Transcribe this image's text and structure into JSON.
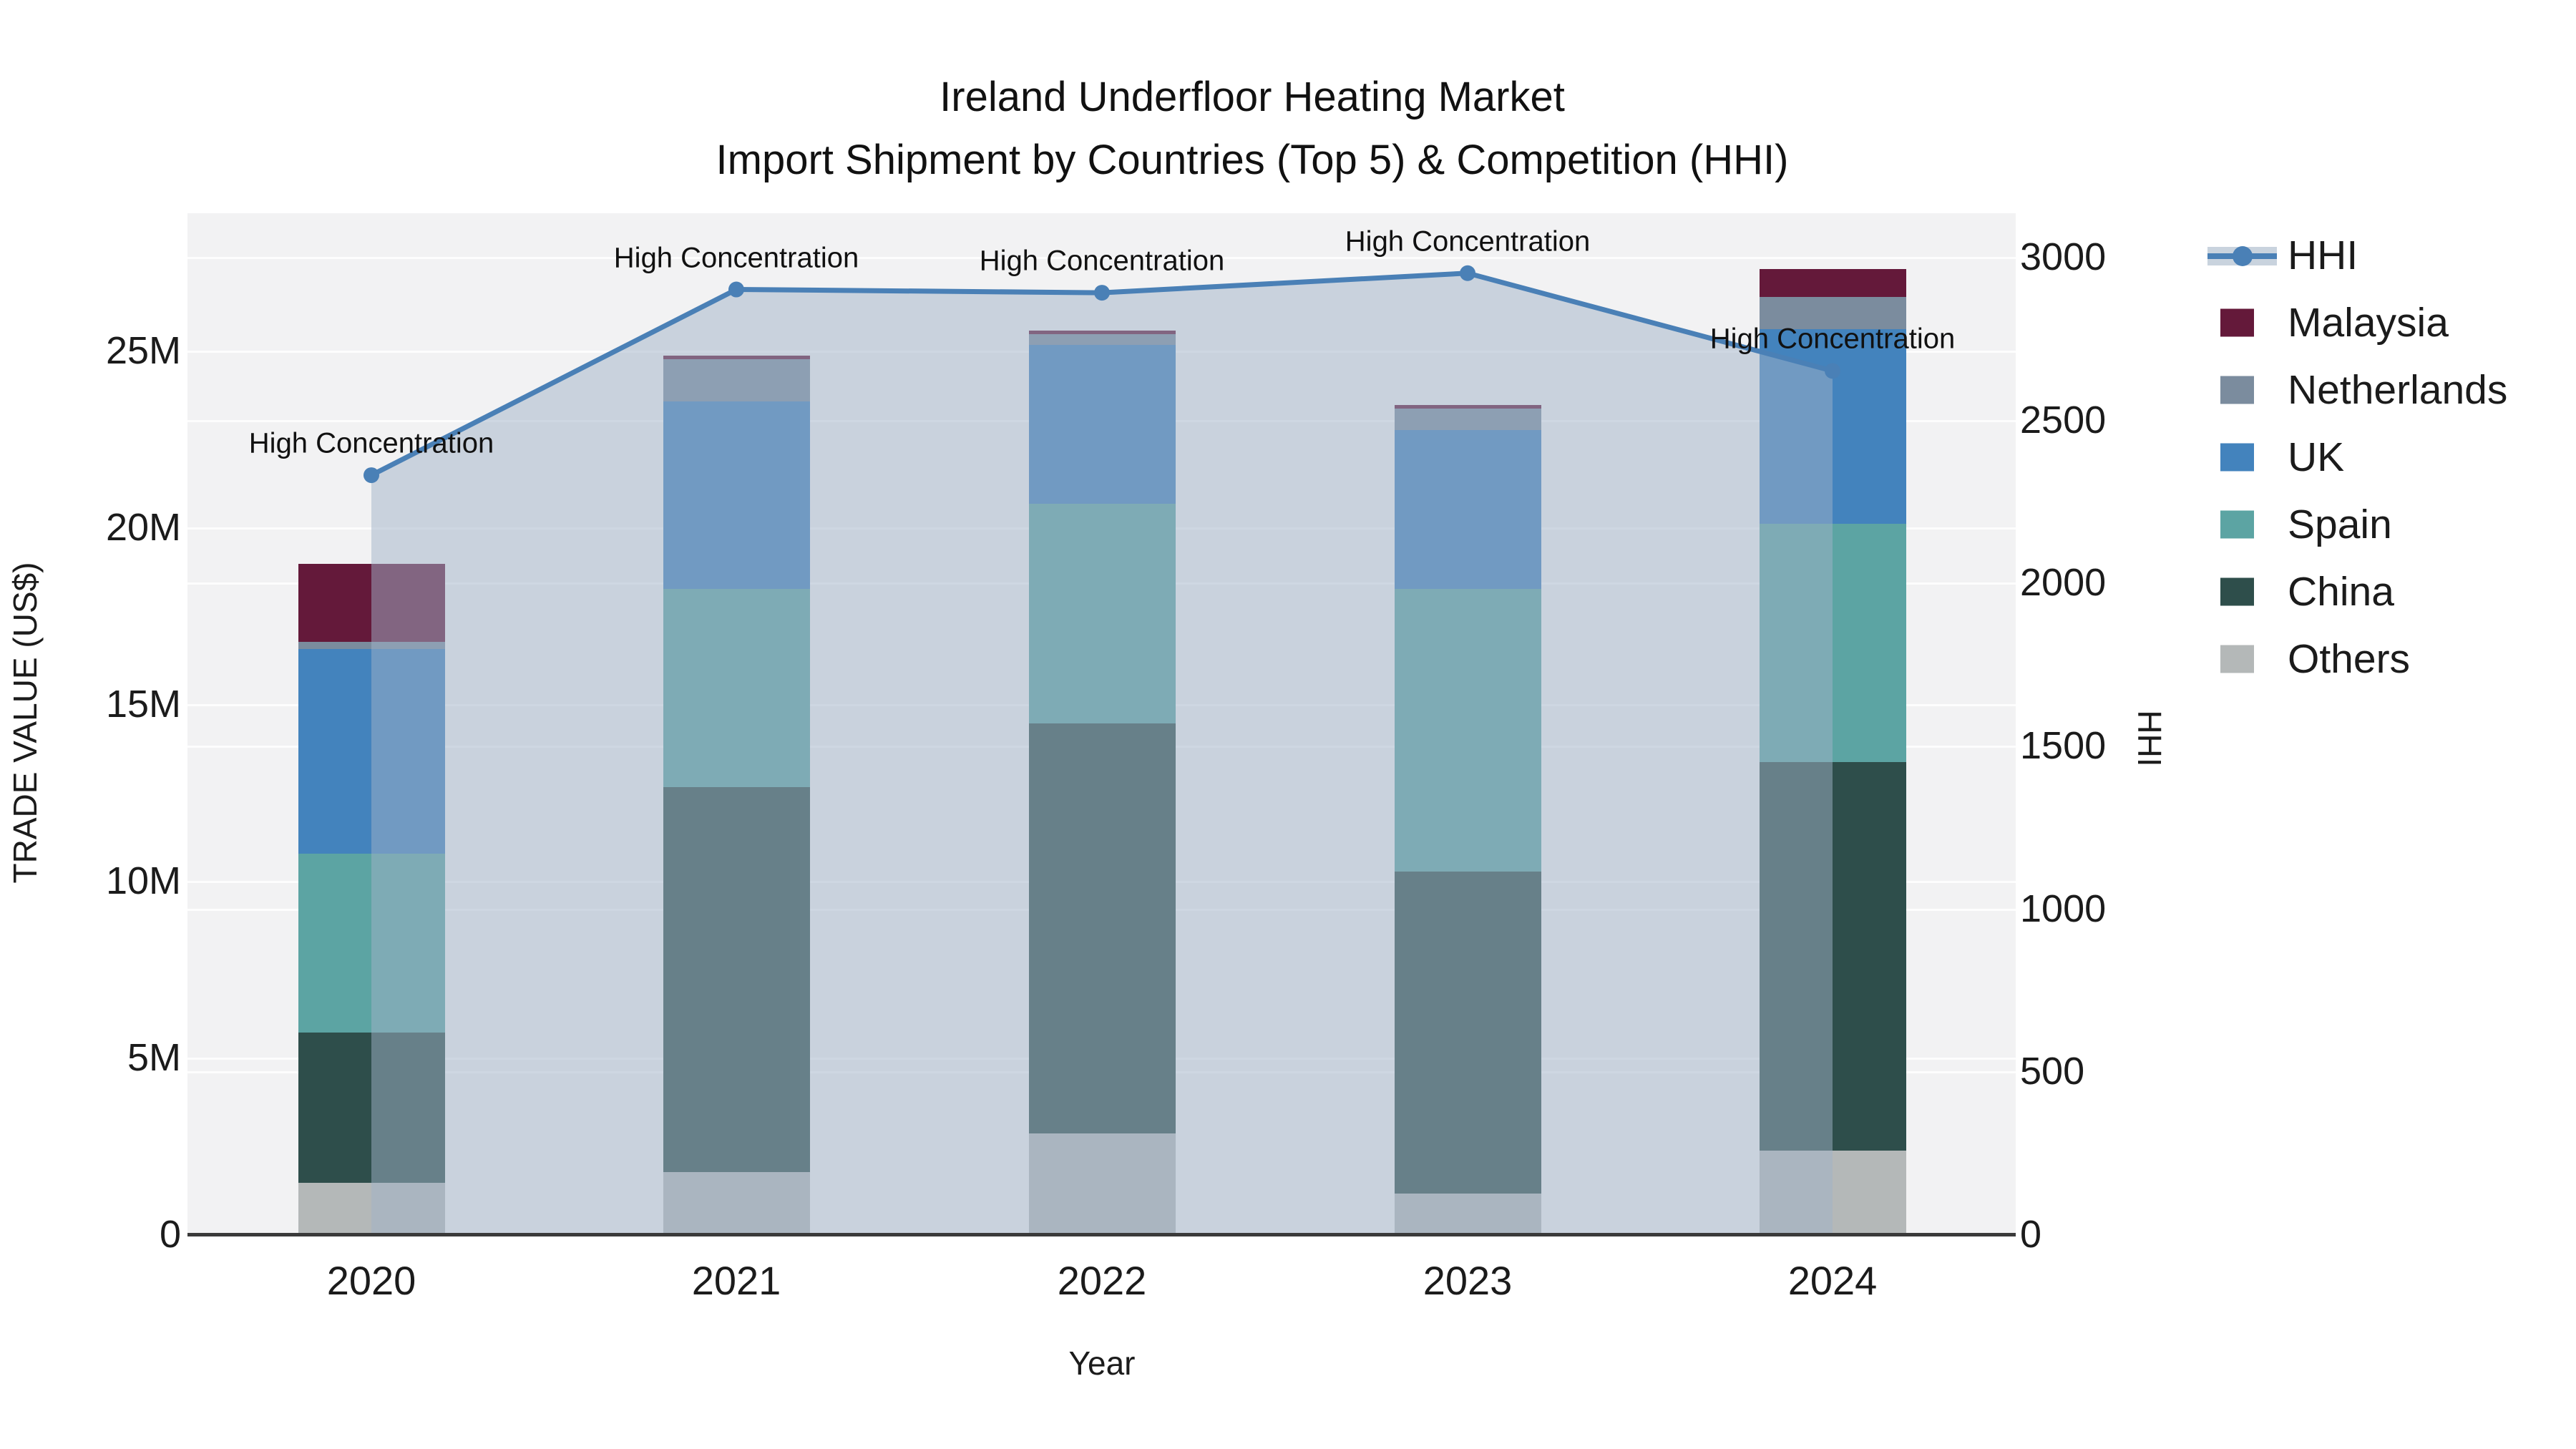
{
  "chart_data": {
    "type": "bar+line",
    "title": "Ireland Underfloor Heating Market",
    "subtitle": "Import Shipment by Countries (Top 5) & Competition (HHI)",
    "xlabel": "Year",
    "ylabel_left": "TRADE VALUE (US$)",
    "ylabel_right": "HHI",
    "categories": [
      "2020",
      "2021",
      "2022",
      "2023",
      "2024"
    ],
    "bar_value_unit": "millions US$",
    "series": [
      {
        "name": "Others",
        "color": "#b4b8b8",
        "values": [
          1.5,
          1.8,
          2.9,
          1.2,
          2.4
        ]
      },
      {
        "name": "China",
        "color": "#2e4e4b",
        "values": [
          4.25,
          10.9,
          11.6,
          9.1,
          11.0
        ]
      },
      {
        "name": "Spain",
        "color": "#5ca4a3",
        "values": [
          5.05,
          5.6,
          6.2,
          8.0,
          6.75
        ]
      },
      {
        "name": "UK",
        "color": "#4383bd",
        "values": [
          5.8,
          5.3,
          4.5,
          4.5,
          5.5
        ]
      },
      {
        "name": "Netherlands",
        "color": "#7b8c9e",
        "values": [
          0.2,
          1.2,
          0.3,
          0.6,
          0.9
        ]
      },
      {
        "name": "Malaysia",
        "color": "#64193a",
        "values": [
          2.2,
          0.1,
          0.1,
          0.1,
          0.8
        ]
      }
    ],
    "stack_order_bottom_to_top": [
      "Others",
      "China",
      "Spain",
      "UK",
      "Netherlands",
      "Malaysia"
    ],
    "bar_totals": [
      19.0,
      24.9,
      25.6,
      23.5,
      27.35
    ],
    "line_series": {
      "name": "HHI",
      "color": "#4a80b6",
      "fill_color": "#a0b2c8",
      "values": [
        2330,
        2900,
        2890,
        2950,
        2650
      ]
    },
    "annotations": [
      "High Concentration",
      "High Concentration",
      "High Concentration",
      "High Concentration",
      "High Concentration"
    ],
    "left_axis": {
      "ticks": [
        "0",
        "5M",
        "10M",
        "15M",
        "20M",
        "25M"
      ],
      "tick_values": [
        0,
        5,
        10,
        15,
        20,
        25
      ],
      "range": [
        0,
        28.9
      ],
      "grid": true
    },
    "right_axis": {
      "ticks": [
        "0",
        "500",
        "1000",
        "1500",
        "2000",
        "2500",
        "3000"
      ],
      "tick_values": [
        0,
        500,
        1000,
        1500,
        2000,
        2500,
        3000
      ],
      "range": [
        0,
        3000
      ],
      "grid": true
    },
    "legend": {
      "position": "right",
      "items": [
        "HHI",
        "Malaysia",
        "Netherlands",
        "UK",
        "Spain",
        "China",
        "Others"
      ]
    }
  }
}
